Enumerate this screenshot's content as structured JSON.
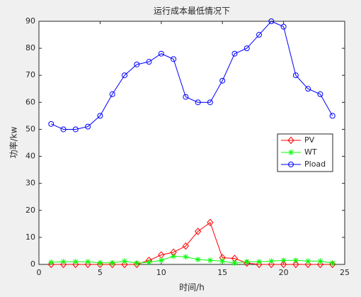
{
  "chart_data": {
    "type": "line",
    "title": "运行成本最低情况下",
    "x_label": "时间/h",
    "y_label": "功率/kw",
    "x": [
      1,
      2,
      3,
      4,
      5,
      6,
      7,
      8,
      9,
      10,
      11,
      12,
      13,
      14,
      15,
      16,
      17,
      18,
      19,
      20,
      21,
      22,
      23,
      24
    ],
    "series": [
      {
        "name": "PV",
        "color": "#ff0000",
        "marker": "diamond",
        "values": [
          0,
          0,
          0,
          0,
          0,
          0,
          0,
          0,
          1.5,
          3.5,
          4.5,
          6.8,
          12.2,
          15.5,
          2.5,
          2.2,
          0.5,
          0,
          0,
          0,
          0,
          0,
          0,
          0
        ]
      },
      {
        "name": "WT",
        "color": "#00ff00",
        "marker": "asterisk",
        "values": [
          0.8,
          1,
          1,
          1,
          0.6,
          0.6,
          1.2,
          0.5,
          0.8,
          1.5,
          3,
          2.8,
          1.8,
          1.5,
          1.2,
          0.5,
          1,
          1,
          1.2,
          1.5,
          1.5,
          1.2,
          1.2,
          0.5
        ]
      },
      {
        "name": "Pload",
        "color": "#0000ff",
        "marker": "circle",
        "values": [
          52,
          50,
          50,
          51,
          55,
          63,
          70,
          74,
          75,
          78,
          76,
          62,
          60,
          60,
          68,
          78,
          80,
          85,
          90,
          88,
          70,
          65,
          63,
          55
        ]
      }
    ],
    "xlim": [
      0,
      25
    ],
    "xticks": [
      0,
      5,
      10,
      15,
      20,
      25
    ],
    "ylim": [
      0,
      90
    ],
    "yticks": [
      0,
      10,
      20,
      30,
      40,
      50,
      60,
      70,
      80,
      90
    ],
    "legend": "east"
  }
}
